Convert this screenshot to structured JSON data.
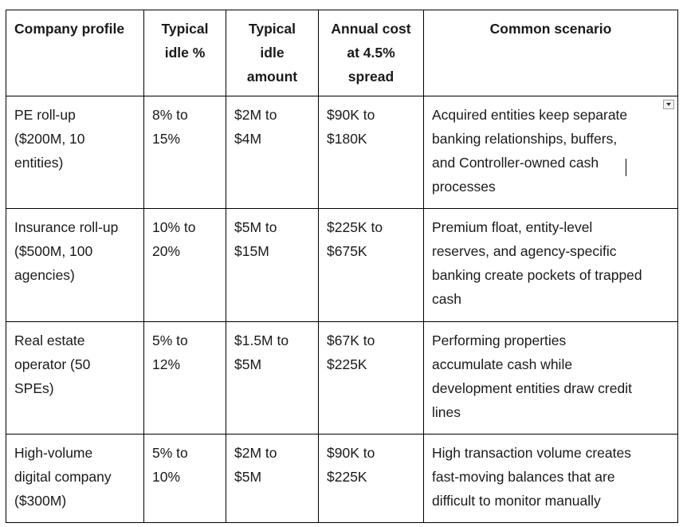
{
  "table": {
    "headers": [
      "Company profile",
      "Typical\nidle %",
      "Typical\nidle\namount",
      "Annual cost\nat 4.5%\nspread",
      "Common scenario"
    ],
    "rows": [
      [
        "PE roll-up\n($200M, 10\nentities)",
        "8% to\n15%",
        "$2M to\n$4M",
        "$90K to\n$180K",
        "Acquired entities keep separate\nbanking relationships, buffers,\nand Controller-owned cash\nprocesses"
      ],
      [
        "Insurance roll-up\n($500M, 100\nagencies)",
        "10% to\n20%",
        "$5M to\n$15M",
        "$225K to\n$675K",
        "Premium float, entity-level\nreserves, and agency-specific\nbanking create pockets of trapped\ncash"
      ],
      [
        "Real estate\noperator (50\nSPEs)",
        "5% to\n12%",
        "$1.5M to\n$5M",
        "$67K to\n$225K",
        "Performing properties\naccumulate cash while\ndevelopment entities draw credit\nlines"
      ],
      [
        "High-volume\ndigital company\n($300M)",
        "5% to\n10%",
        "$2M to\n$5M",
        "$90K to\n$225K",
        "High transaction volume creates\nfast-moving balances that are\ndifficult to monitor manually"
      ]
    ]
  }
}
